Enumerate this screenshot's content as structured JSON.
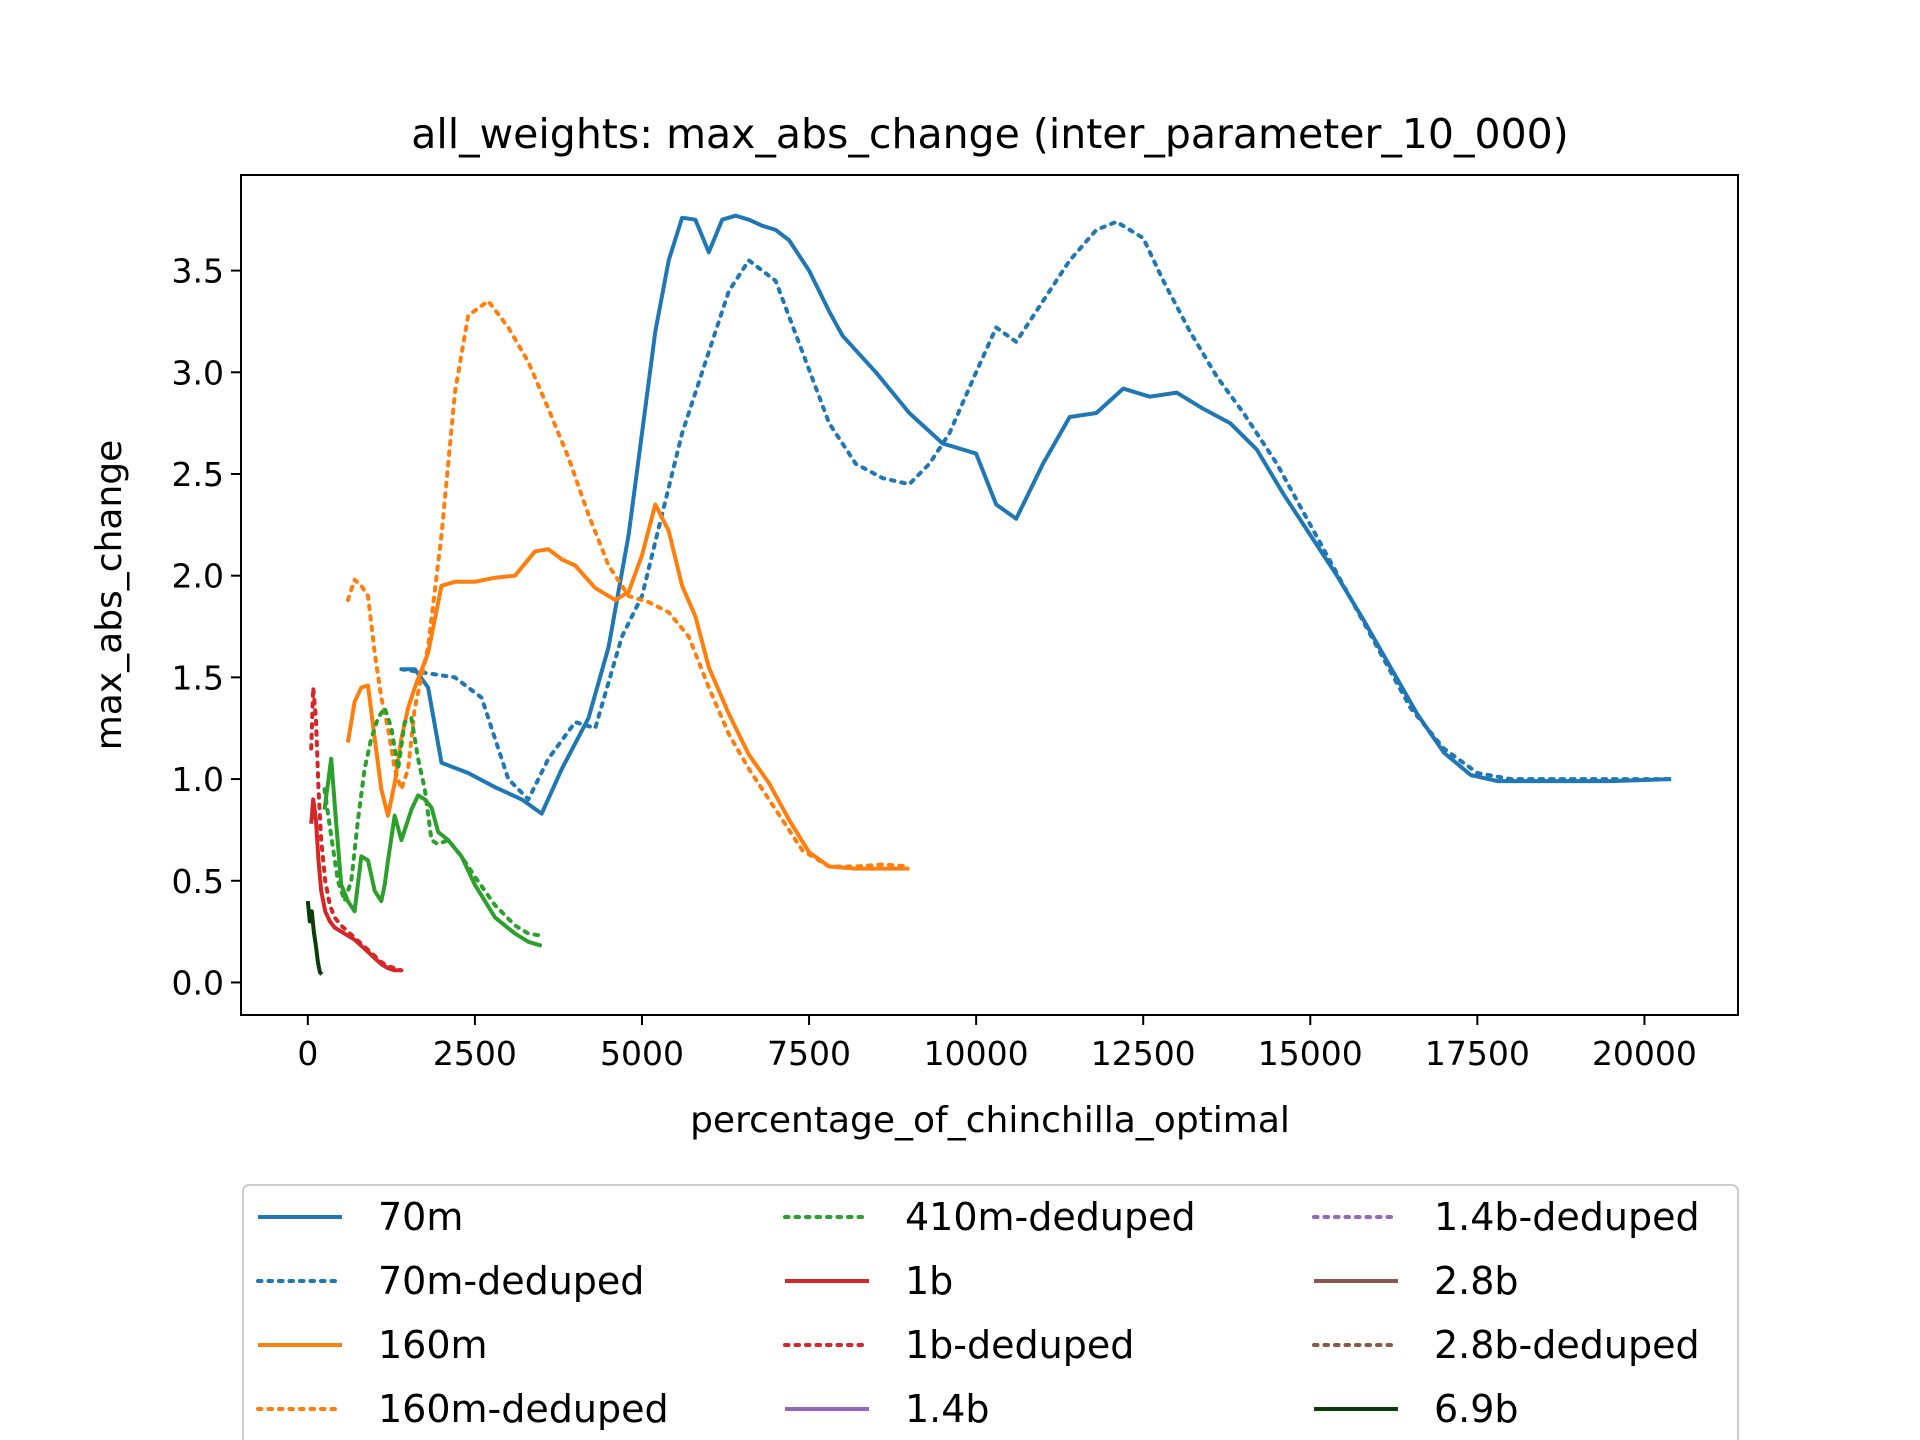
{
  "chart_data": {
    "type": "line",
    "title": "all_weights: max_abs_change (inter_parameter_10_000)",
    "xlabel": "percentage_of_chinchilla_optimal",
    "ylabel": "max_abs_change",
    "xlim": [
      -1000,
      21400
    ],
    "ylim": [
      -0.16,
      3.97
    ],
    "xticks": [
      0,
      2500,
      5000,
      7500,
      10000,
      12500,
      15000,
      17500,
      20000
    ],
    "xtick_labels": [
      "0",
      "2500",
      "5000",
      "7500",
      "10000",
      "12500",
      "15000",
      "17500",
      "20000"
    ],
    "yticks": [
      0.0,
      0.5,
      1.0,
      1.5,
      2.0,
      2.5,
      3.0,
      3.5
    ],
    "ytick_labels": [
      "0.0",
      "0.5",
      "1.0",
      "1.5",
      "2.0",
      "2.5",
      "3.0",
      "3.5"
    ],
    "grid": false,
    "legend_position": "bottom-outside",
    "legend_columns": 3,
    "series": [
      {
        "name": "70m",
        "color": "#1f77b4",
        "style": "solid",
        "x": [
          1400,
          1600,
          1800,
          2000,
          2400,
          2800,
          3200,
          3500,
          3800,
          4200,
          4500,
          4800,
          5000,
          5200,
          5400,
          5600,
          5800,
          6000,
          6200,
          6400,
          6600,
          6800,
          7000,
          7200,
          7500,
          7800,
          8000,
          8500,
          9000,
          9500,
          10000,
          10300,
          10600,
          11000,
          11400,
          11800,
          12200,
          12600,
          13000,
          13400,
          13800,
          14200,
          14600,
          15000,
          15400,
          15800,
          16200,
          16600,
          17000,
          17400,
          17800,
          18500,
          19500,
          20400
        ],
        "y": [
          1.54,
          1.54,
          1.45,
          1.08,
          1.03,
          0.96,
          0.9,
          0.83,
          1.05,
          1.3,
          1.65,
          2.2,
          2.7,
          3.2,
          3.55,
          3.76,
          3.75,
          3.59,
          3.75,
          3.77,
          3.75,
          3.72,
          3.7,
          3.65,
          3.5,
          3.3,
          3.18,
          3.0,
          2.8,
          2.65,
          2.6,
          2.35,
          2.28,
          2.55,
          2.78,
          2.8,
          2.92,
          2.88,
          2.9,
          2.82,
          2.75,
          2.62,
          2.4,
          2.2,
          2.0,
          1.78,
          1.55,
          1.32,
          1.13,
          1.02,
          0.99,
          0.99,
          0.99,
          1.0
        ]
      },
      {
        "name": "70m-deduped",
        "color": "#1f77b4",
        "style": "dotted",
        "x": [
          1400,
          1800,
          2200,
          2600,
          3000,
          3300,
          3600,
          4000,
          4300,
          4700,
          5000,
          5300,
          5600,
          6000,
          6300,
          6600,
          7000,
          7400,
          7800,
          8200,
          8600,
          9000,
          9300,
          9600,
          10000,
          10300,
          10600,
          11000,
          11400,
          11800,
          12100,
          12500,
          12800,
          13200,
          13600,
          14000,
          14500,
          15000,
          15500,
          16000,
          16500,
          17000,
          17500,
          18000,
          19000,
          20400
        ],
        "y": [
          1.54,
          1.52,
          1.5,
          1.4,
          1.0,
          0.9,
          1.1,
          1.28,
          1.25,
          1.7,
          1.9,
          2.3,
          2.7,
          3.1,
          3.4,
          3.55,
          3.45,
          3.1,
          2.75,
          2.55,
          2.48,
          2.45,
          2.55,
          2.7,
          3.0,
          3.22,
          3.15,
          3.35,
          3.55,
          3.7,
          3.74,
          3.66,
          3.45,
          3.2,
          2.98,
          2.8,
          2.55,
          2.25,
          1.95,
          1.65,
          1.35,
          1.15,
          1.03,
          1.0,
          1.0,
          1.0
        ]
      },
      {
        "name": "160m",
        "color": "#ff7f0e",
        "style": "solid",
        "x": [
          600,
          700,
          800,
          900,
          1000,
          1100,
          1200,
          1300,
          1400,
          1500,
          1600,
          1800,
          2000,
          2200,
          2500,
          2800,
          3100,
          3400,
          3600,
          3800,
          4000,
          4300,
          4600,
          4800,
          5000,
          5200,
          5400,
          5600,
          5800,
          6000,
          6300,
          6600,
          6900,
          7200,
          7500,
          7800,
          8200,
          8600,
          9000
        ],
        "y": [
          1.18,
          1.38,
          1.45,
          1.46,
          1.2,
          0.95,
          0.82,
          0.98,
          1.2,
          1.35,
          1.45,
          1.62,
          1.95,
          1.97,
          1.97,
          1.99,
          2.0,
          2.12,
          2.13,
          2.08,
          2.05,
          1.94,
          1.88,
          1.92,
          2.1,
          2.35,
          2.22,
          1.95,
          1.8,
          1.55,
          1.32,
          1.12,
          0.98,
          0.8,
          0.64,
          0.57,
          0.56,
          0.56,
          0.56
        ]
      },
      {
        "name": "160m-deduped",
        "color": "#ff7f0e",
        "style": "dotted",
        "x": [
          600,
          700,
          800,
          900,
          1000,
          1100,
          1200,
          1300,
          1400,
          1500,
          1600,
          1800,
          2000,
          2200,
          2400,
          2700,
          3000,
          3300,
          3600,
          3900,
          4200,
          4500,
          4800,
          5100,
          5400,
          5700,
          6000,
          6300,
          6600,
          7000,
          7400,
          7800,
          8200,
          8600,
          9000
        ],
        "y": [
          1.88,
          1.98,
          1.95,
          1.9,
          1.62,
          1.4,
          1.25,
          1.05,
          0.95,
          1.05,
          1.35,
          1.65,
          2.2,
          2.9,
          3.28,
          3.35,
          3.22,
          3.05,
          2.82,
          2.58,
          2.3,
          2.05,
          1.9,
          1.87,
          1.82,
          1.7,
          1.45,
          1.22,
          1.05,
          0.85,
          0.65,
          0.57,
          0.57,
          0.58,
          0.57
        ]
      },
      {
        "name": "410m-deduped",
        "color": "#2ca02c",
        "style": "dotted",
        "x": [
          250,
          350,
          450,
          550,
          650,
          750,
          850,
          950,
          1050,
          1150,
          1250,
          1350,
          1450,
          1550,
          1650,
          1750,
          1850,
          1950,
          2100,
          2300,
          2500,
          2800,
          3100,
          3300,
          3500
        ],
        "y": [
          0.95,
          0.72,
          0.5,
          0.4,
          0.5,
          0.8,
          1.05,
          1.2,
          1.3,
          1.35,
          1.25,
          1.05,
          1.28,
          1.3,
          1.1,
          0.95,
          0.7,
          0.68,
          0.7,
          0.62,
          0.52,
          0.38,
          0.28,
          0.24,
          0.23
        ]
      },
      {
        "name": "1b",
        "color": "#d62728",
        "style": "solid",
        "x": [
          50,
          80,
          120,
          160,
          200,
          260,
          330,
          400,
          500,
          600,
          700,
          800,
          900,
          1000,
          1100,
          1200,
          1300,
          1400
        ],
        "y": [
          0.78,
          0.9,
          0.8,
          0.6,
          0.45,
          0.35,
          0.3,
          0.27,
          0.25,
          0.23,
          0.21,
          0.18,
          0.15,
          0.12,
          0.09,
          0.07,
          0.06,
          0.06
        ]
      },
      {
        "name": "1b-deduped",
        "color": "#d62728",
        "style": "dotted",
        "x": [
          50,
          80,
          120,
          160,
          200,
          260,
          330,
          400,
          500,
          600,
          700,
          800,
          900,
          1000,
          1100,
          1200,
          1300,
          1400
        ],
        "y": [
          1.15,
          1.45,
          1.3,
          0.95,
          0.7,
          0.5,
          0.38,
          0.32,
          0.28,
          0.25,
          0.22,
          0.19,
          0.16,
          0.13,
          0.1,
          0.08,
          0.07,
          0.06
        ]
      },
      {
        "name": "1.4b-deduped",
        "color": "#9467bd",
        "style": "dotted",
        "x": [],
        "y": []
      },
      {
        "name": "2.8b",
        "color": "#8c564b",
        "style": "solid",
        "x": [],
        "y": []
      },
      {
        "name": "2.8b-deduped",
        "color": "#8c564b",
        "style": "dotted",
        "x": [],
        "y": []
      },
      {
        "name": "1.4b",
        "color": "#9467bd",
        "style": "solid",
        "x": [],
        "y": []
      },
      {
        "name": "6.9b",
        "color": "#0b3d0b",
        "style": "solid",
        "x": [
          0,
          30,
          60,
          90,
          120,
          150,
          180,
          210
        ],
        "y": [
          0.4,
          0.3,
          0.35,
          0.25,
          0.18,
          0.1,
          0.05,
          0.04
        ]
      },
      {
        "name": "410m",
        "color": "#2ca02c",
        "style": "solid",
        "in_legend": false,
        "x": [
          250,
          350,
          420,
          500,
          600,
          700,
          800,
          900,
          1000,
          1100,
          1150,
          1200,
          1300,
          1400,
          1500,
          1550,
          1650,
          1750,
          1850,
          1950,
          2100,
          2300,
          2500,
          2800,
          3100,
          3300,
          3500
        ],
        "y": [
          0.85,
          1.1,
          0.8,
          0.48,
          0.4,
          0.35,
          0.62,
          0.6,
          0.45,
          0.4,
          0.48,
          0.6,
          0.82,
          0.7,
          0.8,
          0.85,
          0.92,
          0.9,
          0.86,
          0.74,
          0.7,
          0.62,
          0.48,
          0.32,
          0.24,
          0.2,
          0.18
        ]
      }
    ],
    "legend_order": [
      "70m",
      "70m-deduped",
      "160m",
      "160m-deduped",
      "410m-deduped",
      "1b",
      "1b-deduped",
      "1.4b",
      "1.4b-deduped",
      "2.8b",
      "2.8b-deduped",
      "6.9b"
    ]
  }
}
